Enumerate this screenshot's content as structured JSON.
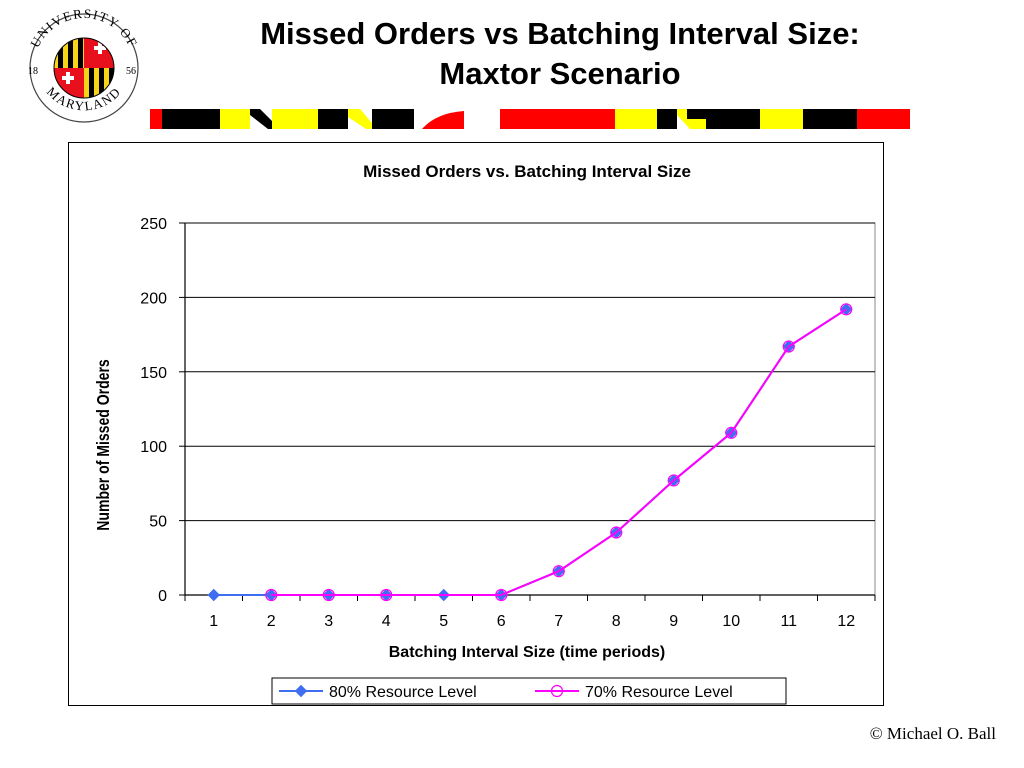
{
  "slide": {
    "title_line1": "Missed Orders vs Batching Interval Size:",
    "title_line2": "Maxtor Scenario",
    "copyright": "© Michael O. Ball"
  },
  "logo": {
    "ring_text": "UNIVERSITY OF MARYLAND",
    "year_left": "18",
    "year_right": "56",
    "colors": {
      "red": "#e8101c",
      "gold": "#f7d417",
      "black": "#000000",
      "white": "#ffffff"
    }
  },
  "banner_colors": {
    "red": "#ff0000",
    "yellow": "#ffff00",
    "black": "#000000",
    "white": "#ffffff"
  },
  "chart_data": {
    "type": "line",
    "title": "Missed Orders vs. Batching Interval Size",
    "xlabel": "Batching Interval Size (time periods)",
    "ylabel": "Number of Missed Orders",
    "categories": [
      "1",
      "2",
      "3",
      "4",
      "5",
      "6",
      "7",
      "8",
      "9",
      "10",
      "11",
      "12"
    ],
    "ylim": [
      0,
      250
    ],
    "yticks": [
      0,
      50,
      100,
      150,
      200,
      250
    ],
    "grid": "horizontal",
    "legend_position": "bottom",
    "series": [
      {
        "name": "80% Resource Level",
        "color": "#3f6ff0",
        "marker": "diamond",
        "values": [
          0,
          0,
          0,
          0,
          0,
          0,
          16,
          42,
          77,
          109,
          167,
          192
        ]
      },
      {
        "name": "70% Resource Level",
        "color": "#ff00ff",
        "marker": "circle",
        "values": [
          null,
          0,
          0,
          0,
          null,
          0,
          16,
          42,
          77,
          109,
          167,
          192
        ]
      }
    ]
  }
}
